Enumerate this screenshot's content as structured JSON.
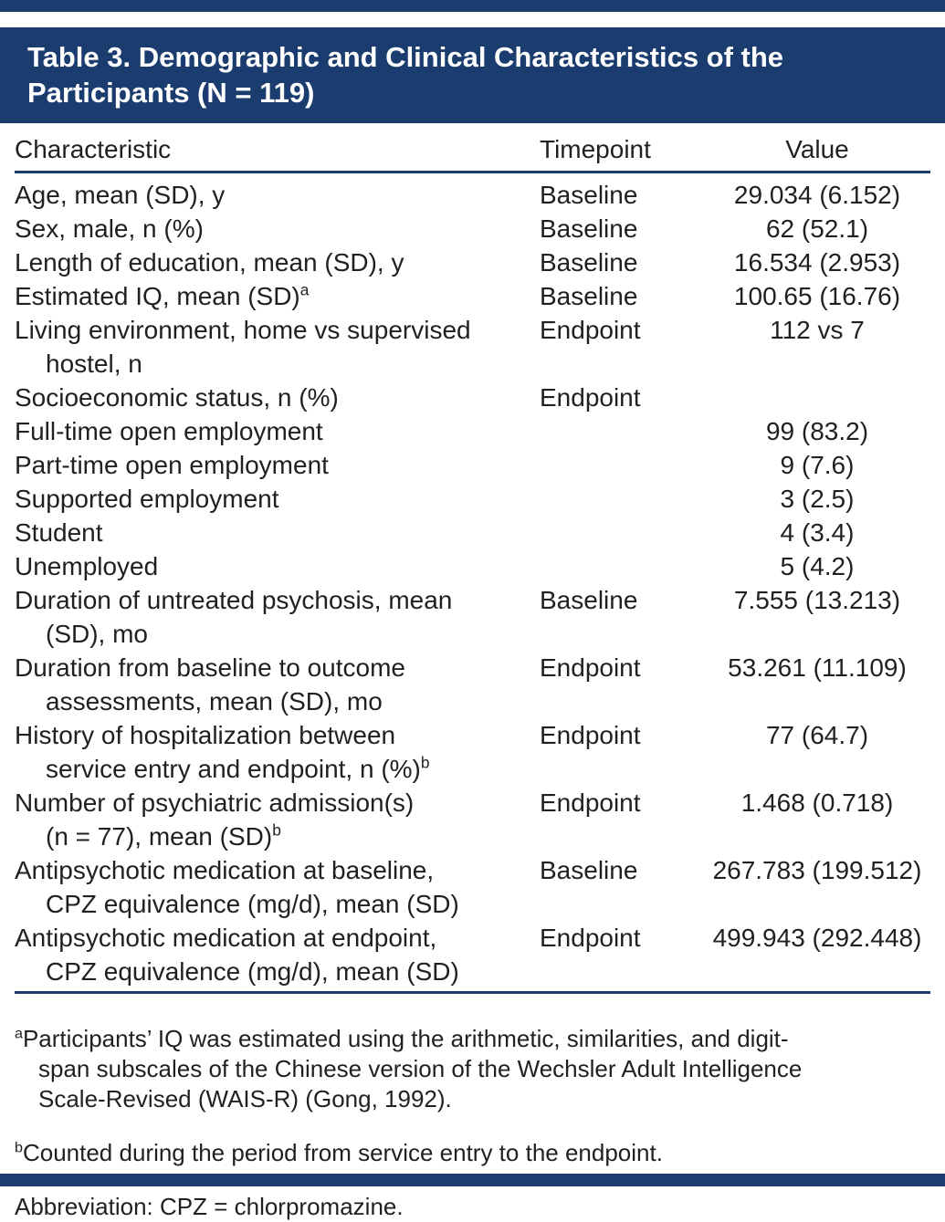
{
  "colors": {
    "accent_blue": "#1a3c6e",
    "text": "#231f20",
    "title_text": "#ffffff"
  },
  "table": {
    "title": "Table 3. Demographic and Clinical Characteristics of the\nParticipants (N = 119)",
    "columns": {
      "characteristic": "Characteristic",
      "timepoint": "Timepoint",
      "value": "Value"
    },
    "rows": [
      {
        "characteristic": "Age, mean (SD), y",
        "sup": "",
        "timepoint": "Baseline",
        "value": "29.034 (6.152)"
      },
      {
        "characteristic": "Sex, male, n (%)",
        "sup": "",
        "timepoint": "Baseline",
        "value": "62 (52.1)"
      },
      {
        "characteristic": "Length of education, mean (SD), y",
        "sup": "",
        "timepoint": "Baseline",
        "value": "16.534 (2.953)"
      },
      {
        "characteristic": "Estimated IQ, mean (SD)",
        "sup": "a",
        "timepoint": "Baseline",
        "value": "100.65 (16.76)"
      },
      {
        "characteristic": "Living environment, home vs supervised\nhostel, n",
        "sup": "",
        "timepoint": "Endpoint",
        "value": "112 vs 7"
      },
      {
        "characteristic": "Socioeconomic status, n (%)",
        "sup": "",
        "timepoint": "Endpoint",
        "value": ""
      },
      {
        "characteristic": "Full-time open employment",
        "sup": "",
        "timepoint": "",
        "value": "99 (83.2)"
      },
      {
        "characteristic": "Part-time open employment",
        "sup": "",
        "timepoint": "",
        "value": "9 (7.6)"
      },
      {
        "characteristic": "Supported employment",
        "sup": "",
        "timepoint": "",
        "value": "3 (2.5)"
      },
      {
        "characteristic": "Student",
        "sup": "",
        "timepoint": "",
        "value": "4 (3.4)"
      },
      {
        "characteristic": "Unemployed",
        "sup": "",
        "timepoint": "",
        "value": "5 (4.2)"
      },
      {
        "characteristic": "Duration of untreated psychosis, mean\n(SD), mo",
        "sup": "",
        "timepoint": "Baseline",
        "value": "7.555 (13.213)"
      },
      {
        "characteristic": "Duration from baseline to outcome\nassessments, mean (SD), mo",
        "sup": "",
        "timepoint": "Endpoint",
        "value": "53.261 (11.109)"
      },
      {
        "characteristic": "History of hospitalization between\nservice entry and endpoint, n (%)",
        "sup": "b",
        "timepoint": "Endpoint",
        "value": "77 (64.7)"
      },
      {
        "characteristic": "Number of psychiatric admission(s)\n(n = 77), mean (SD)",
        "sup": "b",
        "timepoint": "Endpoint",
        "value": "1.468 (0.718)"
      },
      {
        "characteristic": "Antipsychotic medication at baseline,\nCPZ equivalence (mg/d), mean (SD)",
        "sup": "",
        "timepoint": "Baseline",
        "value": "267.783 (199.512)"
      },
      {
        "characteristic": "Antipsychotic medication at endpoint,\nCPZ equivalence (mg/d), mean (SD)",
        "sup": "",
        "timepoint": "Endpoint",
        "value": "499.943 (292.448)"
      }
    ],
    "footnotes": [
      {
        "sup": "a",
        "text": "Participants’ IQ was estimated using the arithmetic, similarities, and digit-\nspan subscales of the Chinese version of the Wechsler Adult Intelligence\nScale-Revised (WAIS-R) (Gong, 1992)."
      },
      {
        "sup": "b",
        "text": "Counted during the period from service entry to the endpoint."
      },
      {
        "sup": "",
        "text": "Abbreviation: CPZ = chlorpromazine."
      }
    ]
  }
}
